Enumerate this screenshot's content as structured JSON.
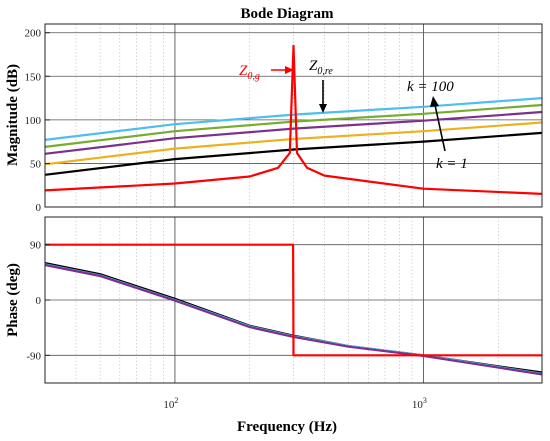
{
  "chart_data": {
    "type": "line",
    "title": "Bode Diagram",
    "xlabel": "Frequency  (Hz)",
    "xscale": "log",
    "xlim": [
      30,
      3000
    ],
    "x_ticks": [
      {
        "value": 100,
        "base": "10",
        "exp": "2"
      },
      {
        "value": 1000,
        "base": "10",
        "exp": "3"
      }
    ],
    "grid": true,
    "panels": [
      {
        "id": "magnitude",
        "ylabel": "Magnitude (dB)",
        "ylim": [
          0,
          210
        ],
        "yticks": [
          0,
          50,
          100,
          150,
          200
        ],
        "series": [
          {
            "color": "#4DBEEE",
            "x": [
              30,
              100,
              300,
              1000,
              3000
            ],
            "values": [
              77,
              95,
              106,
              115,
              125
            ]
          },
          {
            "color": "#77AC30",
            "x": [
              30,
              100,
              300,
              1000,
              3000
            ],
            "values": [
              69,
              87,
              98,
              107,
              117
            ]
          },
          {
            "color": "#7E2F8E",
            "x": [
              30,
              100,
              300,
              1000,
              3000
            ],
            "values": [
              61,
              79,
              90,
              99,
              109
            ]
          },
          {
            "color": "#EDB120",
            "x": [
              30,
              100,
              300,
              1000,
              3000
            ],
            "values": [
              49,
              67,
              78,
              87,
              97
            ]
          },
          {
            "color": "#000000",
            "x": [
              30,
              100,
              300,
              1000,
              3000
            ],
            "values": [
              37,
              55,
              66,
              75,
              85
            ]
          },
          {
            "color": "#FF0000",
            "x": [
              30,
              100,
              200,
              260,
              290,
              300,
              310,
              340,
              400,
              1000,
              3000
            ],
            "values": [
              19,
              27,
              35,
              45,
              62,
              185,
              62,
              45,
              36,
              21,
              15
            ]
          }
        ],
        "annotations": [
          {
            "base": "Z",
            "sub": "0,g",
            "color": "#FF0000"
          },
          {
            "base": "Z",
            "sub": "0,re",
            "color": "#000000"
          },
          {
            "text": "k = 100",
            "color": "#000000"
          },
          {
            "text": "k = 1",
            "color": "#000000"
          }
        ]
      },
      {
        "id": "phase",
        "ylabel": "Phase (deg)",
        "ylim": [
          -135,
          135
        ],
        "yticks": [
          90,
          0,
          -90
        ],
        "series": [
          {
            "color": "#000000",
            "x": [
              30,
              50,
              100,
              200,
              300,
              500,
              1000,
              2000,
              3000
            ],
            "values": [
              60,
              42,
              2,
              -42,
              -58,
              -75,
              -90,
              -108,
              -118
            ]
          },
          {
            "color": "#4DBEEE",
            "x": [
              30,
              50,
              100,
              200,
              300,
              500,
              1000,
              2000,
              3000
            ],
            "values": [
              58,
              40,
              0,
              -43,
              -59,
              -75,
              -90,
              -109,
              -120
            ]
          },
          {
            "color": "#7E2F8E",
            "x": [
              30,
              50,
              100,
              200,
              300,
              500,
              1000,
              2000,
              3000
            ],
            "values": [
              57,
              39,
              -1,
              -44,
              -60,
              -76,
              -91,
              -110,
              -121
            ]
          },
          {
            "color": "#FF0000",
            "x": [
              30,
              299,
              299.5,
              300,
              3000
            ],
            "values": [
              90,
              90,
              0,
              -90,
              -90
            ]
          }
        ]
      }
    ]
  }
}
